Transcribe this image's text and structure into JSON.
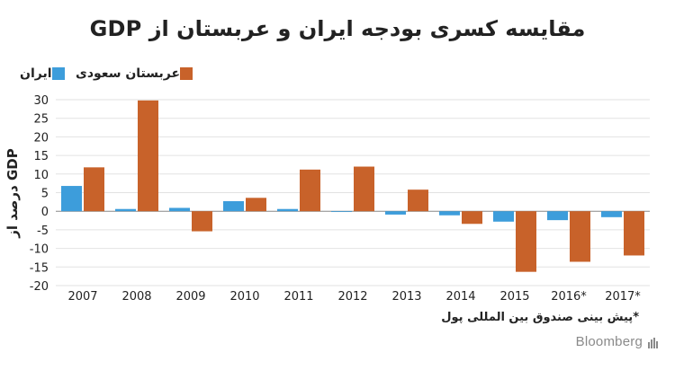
{
  "title": "مقایسه کسری بودجه ایران و عربستان از GDP",
  "legend": {
    "iran": "ایران",
    "saudi": "عربستان سعودی"
  },
  "colors": {
    "iran": "#3d9ddb",
    "saudi": "#c8622a"
  },
  "ylabel": "درصد از GDP",
  "footnote": "*پیش بینی صندوق بین المللی پول",
  "brand": "Bloomberg",
  "chart_data": {
    "type": "bar",
    "title": "مقایسه کسری بودجه ایران و عربستان از GDP",
    "xlabel": "",
    "ylabel": "درصد از GDP",
    "ylim": [
      -20,
      30
    ],
    "yticks": [
      30,
      25,
      20,
      15,
      10,
      5,
      0,
      -5,
      -10,
      -15,
      -20
    ],
    "grid": true,
    "legend_position": "top-left",
    "categories": [
      "2007",
      "2008",
      "2009",
      "2010",
      "2011",
      "2012",
      "2013",
      "2014",
      "2015",
      "2016*",
      "2017*"
    ],
    "series": [
      {
        "name": "ایران",
        "color": "#3d9ddb",
        "values": [
          6.8,
          0.6,
          0.9,
          2.7,
          0.6,
          -0.2,
          -0.9,
          -1.1,
          -2.8,
          -2.4,
          -1.6
        ]
      },
      {
        "name": "عربستان سعودی",
        "color": "#c8622a",
        "values": [
          11.8,
          29.8,
          -5.4,
          3.6,
          11.2,
          12.0,
          5.8,
          -3.4,
          -16.3,
          -13.6,
          -11.9
        ]
      }
    ]
  }
}
